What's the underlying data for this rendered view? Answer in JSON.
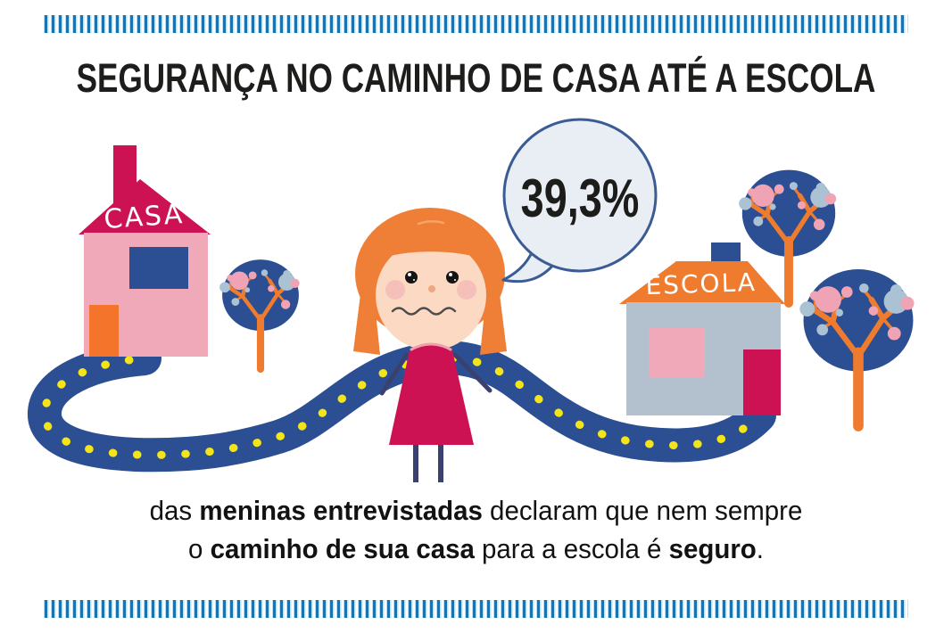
{
  "meta": {
    "language": "pt-BR",
    "kind": "infographic"
  },
  "title": {
    "text": "SEGURANÇA NO CAMINHO DE CASA ATÉ A ESCOLA"
  },
  "stat_bubble": {
    "value": "39,3%"
  },
  "scene": {
    "house_label": "CASA",
    "school_label": "ESCOLA",
    "elements": [
      "house",
      "tree",
      "winding-road",
      "worried-girl",
      "speech-bubble",
      "school",
      "trees"
    ]
  },
  "caption": {
    "line1": [
      {
        "text": "das ",
        "bold": false
      },
      {
        "text": "meninas entrevistadas",
        "bold": true
      },
      {
        "text": " declaram que nem sempre",
        "bold": false
      }
    ],
    "line2": [
      {
        "text": "o ",
        "bold": false
      },
      {
        "text": "caminho de sua casa",
        "bold": true
      },
      {
        "text": " para a escola é ",
        "bold": false
      },
      {
        "text": "seguro",
        "bold": true
      },
      {
        "text": ".",
        "bold": false
      }
    ]
  },
  "colors": {
    "tick_blue": "#1a73ae",
    "tick_light": "#bfdff0",
    "title_text": "#1d1d1b",
    "title_dash": "#b26b86",
    "crimson": "#cd1253",
    "pink": "#efa9b8",
    "orange": "#ef7b2f",
    "navy_blue": "#2b4f92",
    "road_yellow": "#f4e41a",
    "school_gray": "#b3c0cd",
    "bubble_fill": "#e9eef5",
    "bubble_border": "#3b5b94",
    "skin": "#fbd9c2",
    "hair_orange": "#ef7f37",
    "limb_navy": "#3a4170",
    "dot_pink": "#efa3b5",
    "dot_blue": "#aac2d4"
  }
}
